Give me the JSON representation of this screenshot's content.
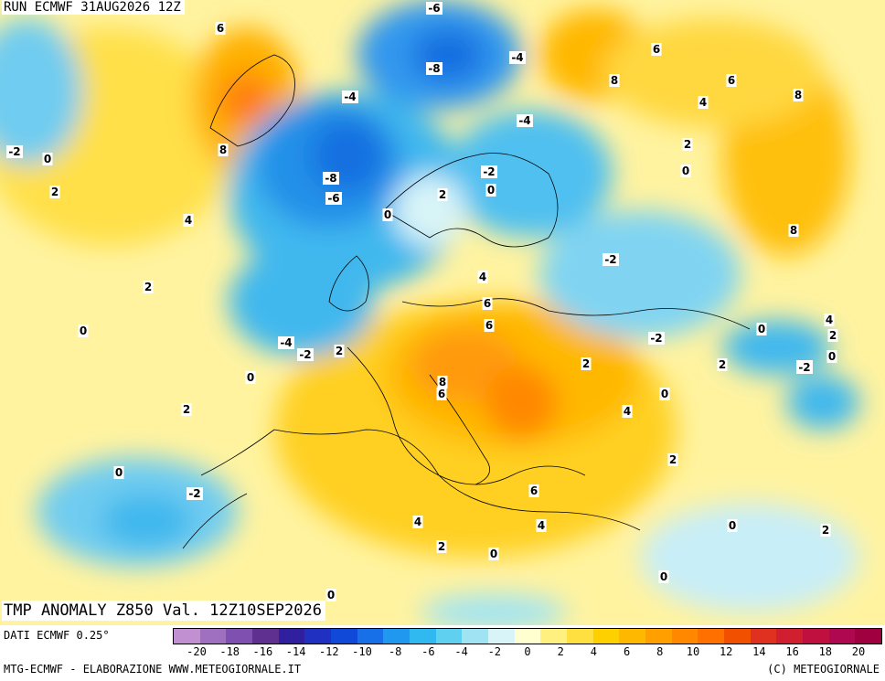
{
  "header": {
    "run": "RUN ECMWF 31AUG2026 12Z"
  },
  "title": "TMP ANOMALY Z850 Val. 12Z10SEP2026",
  "footer": {
    "source": "DATI ECMWF 0.25°",
    "credit": "MTG-ECMWF - ELABORAZIONE WWW.METEOGIORNALE.IT",
    "copyright": "(C) METEOGIORNALE"
  },
  "legend": {
    "ticks": [
      "-20",
      "-18",
      "-16",
      "-14",
      "-12",
      "-10",
      "-8",
      "-6",
      "-4",
      "-2",
      "0",
      "2",
      "4",
      "6",
      "8",
      "10",
      "12",
      "14",
      "16",
      "18",
      "20"
    ],
    "colors": [
      "#c090d0",
      "#a070c0",
      "#8050b0",
      "#603090",
      "#3020a0",
      "#2030c0",
      "#1048d8",
      "#1870e8",
      "#2098f0",
      "#30b8f0",
      "#60d0f0",
      "#a0e4f4",
      "#d8f4f8",
      "#ffffd0",
      "#fff080",
      "#ffe040",
      "#ffd000",
      "#ffb800",
      "#ffa000",
      "#ff8800",
      "#ff7000",
      "#f05000",
      "#e03020",
      "#d02030",
      "#c01040",
      "#b00850",
      "#a00040"
    ]
  },
  "map_labels": [
    "6",
    "-6",
    "6",
    "-2",
    "-8",
    "-4",
    "8",
    "6",
    "8",
    "4",
    "-4",
    "-4",
    "0",
    "2",
    "4",
    "2",
    "-8",
    "-6",
    "0",
    "-2",
    "0",
    "2",
    "0",
    "8",
    "4",
    "6",
    "2",
    "6",
    "8",
    "-2",
    "2",
    "0",
    "-4",
    "-2",
    "2",
    "0",
    "8",
    "6",
    "2",
    "-2",
    "0",
    "-2",
    "4",
    "2",
    "4",
    "0",
    "2",
    "0",
    "-2",
    "0",
    "6",
    "4",
    "2",
    "4",
    "2",
    "0",
    "0",
    "0",
    "2",
    "0",
    "-2"
  ]
}
